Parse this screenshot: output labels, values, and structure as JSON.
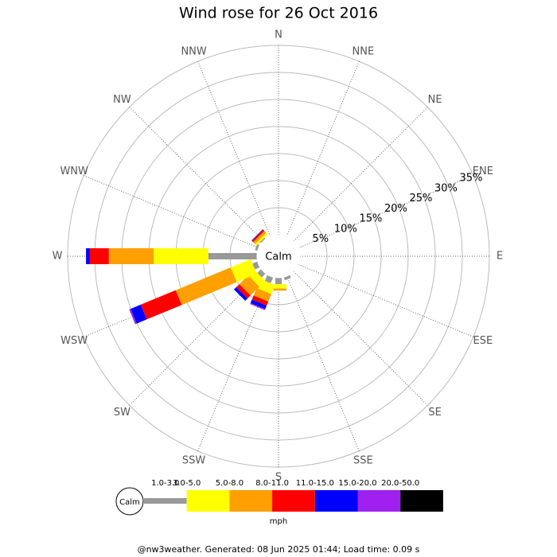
{
  "chart_data": {
    "type": "windrose",
    "title": "Wind rose for 26 Oct 2016",
    "categories": [
      "N",
      "NNE",
      "NE",
      "ENE",
      "E",
      "ESE",
      "SE",
      "SSE",
      "S",
      "SSW",
      "SW",
      "WSW",
      "W",
      "WNW",
      "NW",
      "NNW"
    ],
    "calm_label": "Calm",
    "rlim": [
      0,
      35
    ],
    "rticks": [
      {
        "value": 5,
        "label": "5%"
      },
      {
        "value": 10,
        "label": "10%"
      },
      {
        "value": 15,
        "label": "15%"
      },
      {
        "value": 20,
        "label": "20%"
      },
      {
        "value": 25,
        "label": "25%"
      },
      {
        "value": 30,
        "label": "30%"
      },
      {
        "value": 35,
        "label": "35%"
      }
    ],
    "series": [
      {
        "name": "1.0-3.0",
        "color": "#999999",
        "values": [
          0,
          0,
          0,
          0,
          0,
          0,
          0,
          0.6,
          1.2,
          1.2,
          1,
          1,
          9.0,
          0.5,
          0.3,
          0
        ]
      },
      {
        "name": "3.0-5.0",
        "color": "#ffff00",
        "values": [
          0,
          0,
          0,
          0,
          0,
          0,
          0,
          0,
          0.8,
          1.8,
          1.5,
          4,
          10.1,
          0,
          0.4,
          0
        ]
      },
      {
        "name": "5.0-8.0",
        "color": "#ff9f00",
        "values": [
          0,
          0,
          0,
          0,
          0,
          0,
          0,
          0,
          0.4,
          1.5,
          2.3,
          11,
          8.3,
          0,
          0.5,
          0
        ]
      },
      {
        "name": "8.0-11.0",
        "color": "#ff0000",
        "values": [
          0,
          0,
          0,
          0,
          0,
          0,
          0,
          0,
          0,
          0.8,
          0.8,
          7,
          3.5,
          0,
          0.3,
          0
        ]
      },
      {
        "name": "11.0-15.0",
        "color": "#0000ff",
        "values": [
          0,
          0,
          0,
          0,
          0,
          0,
          0,
          0,
          0,
          0.7,
          0.6,
          2,
          0.7,
          0,
          0.1,
          0
        ]
      },
      {
        "name": "15.0-20.0",
        "color": "#a020f0",
        "values": [
          0,
          0,
          0,
          0,
          0,
          0,
          0,
          0,
          0,
          0.2,
          0,
          0.3,
          0,
          0,
          0,
          0
        ]
      },
      {
        "name": "20.0-50.0",
        "color": "#000000",
        "values": [
          0,
          0,
          0,
          0,
          0,
          0,
          0,
          0,
          0,
          0,
          0,
          0,
          0,
          0,
          0,
          0
        ]
      }
    ],
    "legend_unit": "mph",
    "footer": "@nw3weather. Generated: 08 Jun 2025 01:44; Load time: 0.09 s"
  }
}
